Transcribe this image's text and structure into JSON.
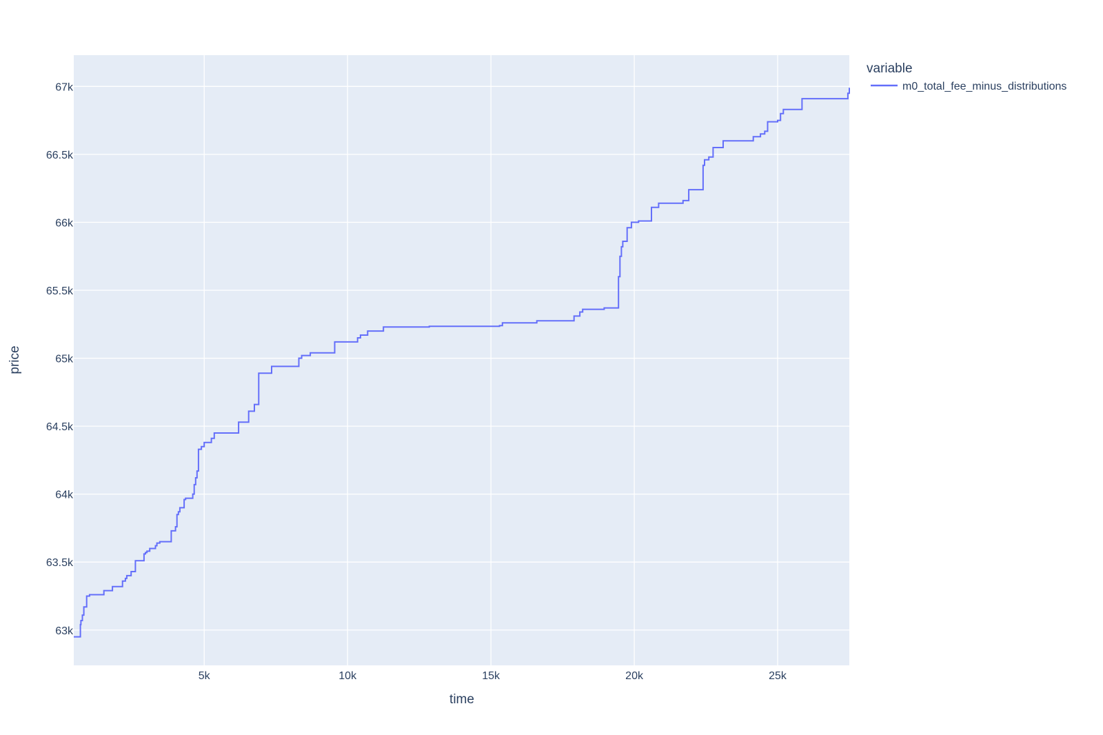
{
  "chart_data": {
    "type": "line",
    "xlabel": "time",
    "ylabel": "price",
    "xlim": [
      450,
      27500
    ],
    "ylim": [
      62740,
      67230
    ],
    "x_ticks": [
      5000,
      10000,
      15000,
      20000,
      25000
    ],
    "x_tick_labels": [
      "5k",
      "10k",
      "15k",
      "20k",
      "25k"
    ],
    "y_ticks": [
      63000,
      63500,
      64000,
      64500,
      65000,
      65500,
      66000,
      66500,
      67000
    ],
    "y_tick_labels": [
      "63k",
      "63.5k",
      "64k",
      "64.5k",
      "65k",
      "65.5k",
      "66k",
      "66.5k",
      "67k"
    ],
    "grid": true,
    "legend": {
      "title": "variable",
      "position": "top-right-outside"
    },
    "colors": {
      "plot_bg": "#e5ecf6",
      "grid": "#ffffff",
      "series": "#636efa",
      "text": "#2a3f5f"
    },
    "line_shape": "step",
    "series": [
      {
        "name": "m0_total_fee_minus_distributions",
        "x": [
          450,
          680,
          700,
          750,
          800,
          900,
          1000,
          1500,
          1800,
          2150,
          2250,
          2300,
          2450,
          2500,
          2600,
          2900,
          2950,
          3000,
          3100,
          3300,
          3350,
          3450,
          3850,
          4000,
          4050,
          4100,
          4150,
          4300,
          4350,
          4600,
          4650,
          4700,
          4750,
          4800,
          4900,
          5000,
          5250,
          5350,
          5450,
          6200,
          6550,
          6750,
          6900,
          7350,
          8300,
          8400,
          8700,
          9550,
          10350,
          10450,
          10700,
          11250,
          12850,
          15300,
          15400,
          16600,
          17900,
          18100,
          18200,
          18950,
          19450,
          19500,
          19550,
          19600,
          19750,
          19900,
          20150,
          20600,
          20850,
          21700,
          21900,
          22400,
          22450,
          22600,
          22750,
          23100,
          24150,
          24400,
          24550,
          24650,
          25000,
          25100,
          25200,
          25250,
          25850,
          27450,
          27500
        ],
        "y": [
          62950,
          63040,
          63070,
          63110,
          63170,
          63250,
          63260,
          63290,
          63320,
          63360,
          63380,
          63400,
          63430,
          63430,
          63510,
          63560,
          63570,
          63580,
          63600,
          63620,
          63640,
          63650,
          63730,
          63760,
          63850,
          63870,
          63900,
          63960,
          63970,
          64000,
          64070,
          64120,
          64170,
          64330,
          64350,
          64380,
          64410,
          64450,
          64450,
          64530,
          64610,
          64660,
          64890,
          64940,
          65000,
          65020,
          65040,
          65120,
          65150,
          65170,
          65200,
          65230,
          65235,
          65240,
          65260,
          65275,
          65310,
          65340,
          65360,
          65370,
          65600,
          65750,
          65820,
          65860,
          65960,
          66000,
          66010,
          66110,
          66140,
          66160,
          66240,
          66420,
          66460,
          66480,
          66550,
          66600,
          66630,
          66650,
          66670,
          66740,
          66750,
          66800,
          66830,
          66830,
          66910,
          66950,
          66990
        ]
      }
    ]
  }
}
